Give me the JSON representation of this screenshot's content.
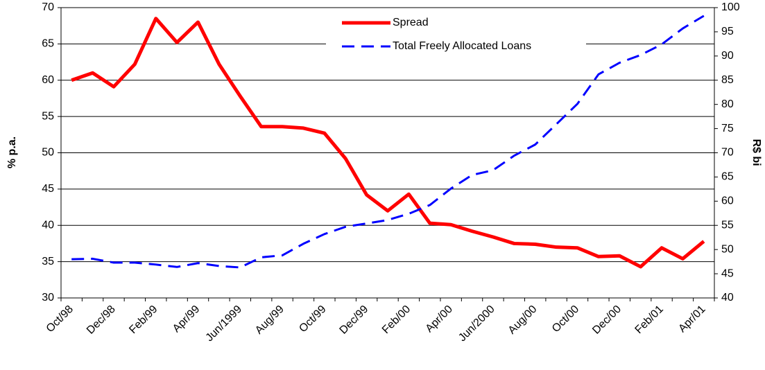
{
  "chart_data": {
    "type": "line",
    "categories": [
      "Oct/98",
      null,
      "Dec/98",
      null,
      "Feb/99",
      null,
      "Apr/99",
      null,
      "Jun/1999",
      null,
      "Aug/99",
      null,
      "Oct/99",
      null,
      "Dec/99",
      null,
      "Feb/00",
      null,
      "Apr/00",
      null,
      "Jun/2000",
      null,
      "Aug/00",
      null,
      "Oct/00",
      null,
      "Dec/00",
      null,
      "Feb/01",
      null,
      "Apr/01"
    ],
    "series": [
      {
        "name": "Spread",
        "color": "#ff0000",
        "values": [
          60,
          61,
          59.1,
          62.2,
          68.5,
          65.2,
          68,
          62.2,
          57.8,
          53.6,
          53.6,
          53.4,
          52.7,
          49.2,
          44.2,
          42,
          44.3,
          40.3,
          40.1,
          39.2,
          38.4,
          37.5,
          37.4,
          37,
          36.9,
          35.7,
          35.8,
          34.3,
          36.9,
          35.4,
          37.8
        ]
      },
      {
        "name": "Total Freely Allocated Loans",
        "color": "#0000ff",
        "axis": "y2",
        "dashed": true,
        "values": [
          48,
          48.1,
          47.3,
          47.3,
          46.9,
          46.4,
          47.2,
          46.6,
          46.3,
          48.4,
          48.8,
          51.2,
          53.2,
          54.7,
          55.4,
          56.1,
          57.4,
          59.2,
          62.6,
          65.4,
          66.4,
          69.4,
          71.7,
          75.9,
          80.1,
          86.2,
          88.6,
          90.2,
          92.4,
          95.7,
          98.3
        ]
      }
    ],
    "ylabel": "% p.a.",
    "y2label": "R$ bi",
    "ylim": [
      30,
      70
    ],
    "yticks": [
      30,
      35,
      40,
      45,
      50,
      55,
      60,
      65,
      70
    ],
    "y2lim": [
      40,
      100
    ],
    "y2ticks": [
      40,
      45,
      50,
      55,
      60,
      65,
      70,
      75,
      80,
      85,
      90,
      95,
      100
    ],
    "grid": true,
    "legend": "top"
  }
}
